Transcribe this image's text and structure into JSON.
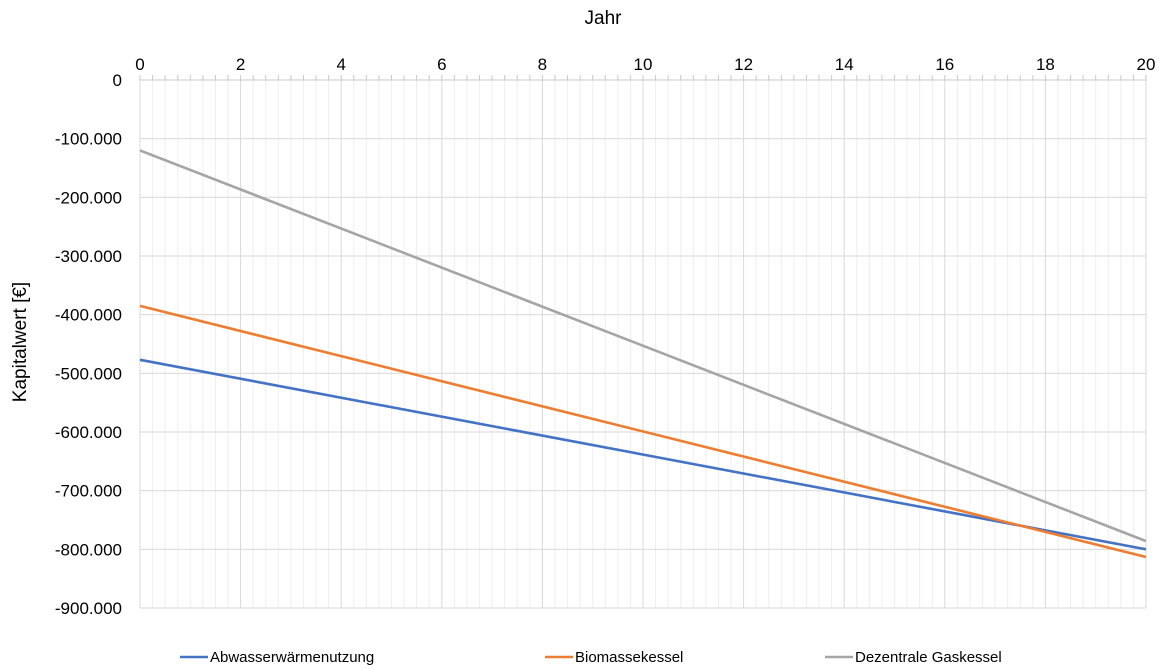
{
  "chart_data": {
    "type": "line",
    "title": "",
    "xlabel": "Jahr",
    "ylabel": "Kapitalwert [€]",
    "x_axis_position": "top",
    "xlim": [
      0,
      20
    ],
    "ylim": [
      -900000,
      0
    ],
    "x_ticks": [
      0,
      2,
      4,
      6,
      8,
      10,
      12,
      14,
      16,
      18,
      20
    ],
    "x_tick_labels": [
      "0",
      "2",
      "4",
      "6",
      "8",
      "10",
      "12",
      "14",
      "16",
      "18",
      "20"
    ],
    "y_ticks": [
      0,
      -100000,
      -200000,
      -300000,
      -400000,
      -500000,
      -600000,
      -700000,
      -800000,
      -900000
    ],
    "y_tick_labels": [
      "0",
      "-100.000",
      "-200.000",
      "-300.000",
      "-400.000",
      "-500.000",
      "-600.000",
      "-700.000",
      "-800.000",
      "-900.000"
    ],
    "grid": true,
    "minor_vertical_grid": true,
    "legend_position": "bottom",
    "x": [
      0,
      20
    ],
    "series": [
      {
        "name": "Abwasserwärmenutzung",
        "color": "#4472C4",
        "values": [
          -477000,
          -800000
        ]
      },
      {
        "name": "Biomassekessel",
        "color": "#ED7D31",
        "values": [
          -385000,
          -813000
        ]
      },
      {
        "name": "Dezentrale Gaskessel",
        "color": "#A5A5A5",
        "values": [
          -120000,
          -786000
        ]
      }
    ]
  }
}
